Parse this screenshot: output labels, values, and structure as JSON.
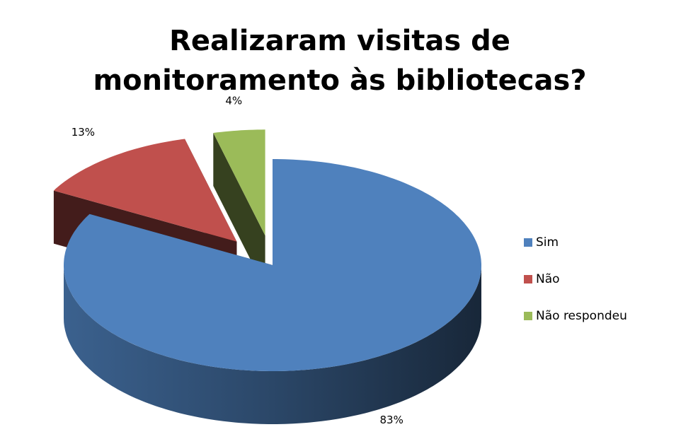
{
  "chart_data": {
    "type": "pie",
    "title": "Realizaram visitas de monitoramento às bibliotecas?",
    "categories": [
      "Sim",
      "Não",
      "Não respondeu"
    ],
    "values": [
      83,
      13,
      4
    ],
    "value_labels": [
      "83%",
      "13%",
      "4%"
    ],
    "colors": [
      "#4f81bd",
      "#c0504d",
      "#9bbb59"
    ],
    "legend": "right"
  }
}
